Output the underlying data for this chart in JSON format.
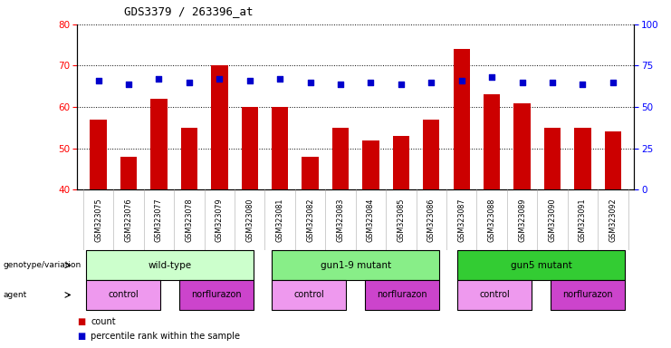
{
  "title": "GDS3379 / 263396_at",
  "samples": [
    "GSM323075",
    "GSM323076",
    "GSM323077",
    "GSM323078",
    "GSM323079",
    "GSM323080",
    "GSM323081",
    "GSM323082",
    "GSM323083",
    "GSM323084",
    "GSM323085",
    "GSM323086",
    "GSM323087",
    "GSM323088",
    "GSM323089",
    "GSM323090",
    "GSM323091",
    "GSM323092"
  ],
  "bar_values": [
    57,
    48,
    62,
    55,
    70,
    60,
    60,
    48,
    55,
    52,
    53,
    57,
    74,
    63,
    61,
    55,
    55,
    54
  ],
  "dot_values": [
    66,
    64,
    67,
    65,
    67,
    66,
    67,
    65,
    64,
    65,
    64,
    65,
    66,
    68,
    65,
    65,
    64,
    65
  ],
  "ylim_left": [
    40,
    80
  ],
  "ylim_right": [
    0,
    100
  ],
  "yticks_left": [
    40,
    50,
    60,
    70,
    80
  ],
  "yticks_right": [
    0,
    25,
    50,
    75,
    100
  ],
  "bar_color": "#cc0000",
  "dot_color": "#0000cc",
  "bar_bottom": 40,
  "background_color": "#ffffff",
  "genotype_groups": [
    {
      "label": "wild-type",
      "start": 0,
      "end": 5,
      "color": "#ccffcc"
    },
    {
      "label": "gun1-9 mutant",
      "start": 6,
      "end": 11,
      "color": "#88ee88"
    },
    {
      "label": "gun5 mutant",
      "start": 12,
      "end": 17,
      "color": "#33cc33"
    }
  ],
  "agent_groups": [
    {
      "label": "control",
      "start": 0,
      "end": 2,
      "color": "#ee99ee"
    },
    {
      "label": "norflurazon",
      "start": 3,
      "end": 5,
      "color": "#cc44cc"
    },
    {
      "label": "control",
      "start": 6,
      "end": 8,
      "color": "#ee99ee"
    },
    {
      "label": "norflurazon",
      "start": 9,
      "end": 11,
      "color": "#cc44cc"
    },
    {
      "label": "control",
      "start": 12,
      "end": 14,
      "color": "#ee99ee"
    },
    {
      "label": "norflurazon",
      "start": 15,
      "end": 17,
      "color": "#cc44cc"
    }
  ]
}
